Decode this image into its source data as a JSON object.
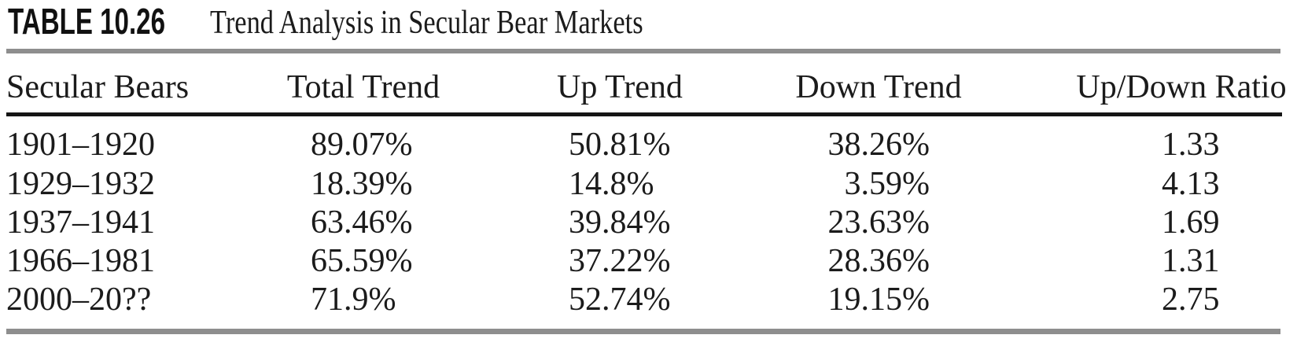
{
  "title": {
    "label": "TABLE 10.26",
    "text": "Trend Analysis in Secular Bear Markets"
  },
  "table": {
    "columns": {
      "period": "Secular Bears",
      "total_trend": "Total Trend",
      "up_trend": "Up Trend",
      "down_trend": "Down Trend",
      "up_down_ratio": "Up/Down Ratio"
    },
    "rows": [
      {
        "period": "1901–1920",
        "total_trend": "89.07%",
        "up_trend": "50.81%",
        "down_trend": "38.26%",
        "up_down_ratio": "1.33"
      },
      {
        "period": "1929–1932",
        "total_trend": "18.39%",
        "up_trend": "14.8%",
        "down_trend": "3.59%",
        "up_down_ratio": "4.13"
      },
      {
        "period": "1937–1941",
        "total_trend": "63.46%",
        "up_trend": "39.84%",
        "down_trend": "23.63%",
        "up_down_ratio": "1.69"
      },
      {
        "period": "1966–1981",
        "total_trend": "65.59%",
        "up_trend": "37.22%",
        "down_trend": "28.36%",
        "up_down_ratio": "1.31"
      },
      {
        "period": "2000–20??",
        "total_trend": "71.9%",
        "up_trend": "52.74%",
        "down_trend": "19.15%",
        "up_down_ratio": "2.75"
      }
    ]
  },
  "colors": {
    "text": "#1b1b1b",
    "rule_gray": "#8e8e8e",
    "rule_black": "#151515"
  }
}
